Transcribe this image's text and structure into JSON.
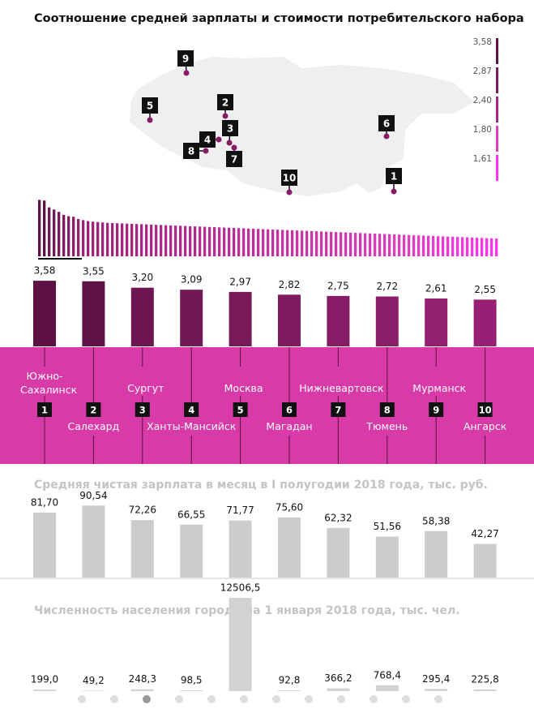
{
  "title": "Соотношение средней зарплаты и стоимости потребительского набора",
  "legend": [
    {
      "value": 3.58,
      "label": "3,58",
      "color": "#5e1244"
    },
    {
      "value": 2.87,
      "label": "2,87",
      "color": "#7c1a5e"
    },
    {
      "value": 2.4,
      "label": "2,40",
      "color": "#a4237e"
    },
    {
      "value": 1.8,
      "label": "1,80",
      "color": "#e03cc0"
    },
    {
      "value": 1.61,
      "label": "1,61",
      "color": "#ff33f0"
    }
  ],
  "overview": {
    "ylim": [
      0.7,
      3.6
    ],
    "values": [
      3.58,
      3.55,
      3.2,
      3.09,
      2.97,
      2.82,
      2.75,
      2.72,
      2.61,
      2.55,
      2.5,
      2.47,
      2.45,
      2.43,
      2.41,
      2.4,
      2.39,
      2.38,
      2.37,
      2.36,
      2.35,
      2.34,
      2.33,
      2.32,
      2.31,
      2.3,
      2.29,
      2.28,
      2.27,
      2.26,
      2.25,
      2.24,
      2.23,
      2.22,
      2.21,
      2.2,
      2.19,
      2.18,
      2.17,
      2.16,
      2.15,
      2.14,
      2.13,
      2.12,
      2.11,
      2.1,
      2.09,
      2.08,
      2.07,
      2.06,
      2.05,
      2.04,
      2.03,
      2.02,
      2.01,
      2.0,
      1.99,
      1.98,
      1.97,
      1.96,
      1.95,
      1.94,
      1.93,
      1.92,
      1.91,
      1.9,
      1.89,
      1.88,
      1.87,
      1.86,
      1.85,
      1.84,
      1.83,
      1.82,
      1.81,
      1.8,
      1.79,
      1.78,
      1.77,
      1.76,
      1.75,
      1.74,
      1.73,
      1.72,
      1.71,
      1.7,
      1.69,
      1.68,
      1.67,
      1.66,
      1.65,
      1.64,
      1.63,
      1.62,
      1.61
    ]
  },
  "cities": [
    {
      "name": "Южно-Сахалинск",
      "number": 1
    },
    {
      "name": "Салехард",
      "number": 2
    },
    {
      "name": "Сургут",
      "number": 3
    },
    {
      "name": "Ханты-Мансийск",
      "number": 4
    },
    {
      "name": "Москва",
      "number": 5
    },
    {
      "name": "Магадан",
      "number": 6
    },
    {
      "name": "Нижневартовск",
      "number": 7
    },
    {
      "name": "Тюмень",
      "number": 8
    },
    {
      "name": "Мурманск",
      "number": 9
    },
    {
      "name": "Ангарск",
      "number": 10
    }
  ],
  "ratio": {
    "ylim": [
      0,
      4
    ],
    "values": [
      3.58,
      3.55,
      3.2,
      3.09,
      2.97,
      2.82,
      2.75,
      2.72,
      2.61,
      2.55
    ],
    "value_labels": [
      "3,58",
      "3,55",
      "3,20",
      "3,09",
      "2,97",
      "2,82",
      "2,75",
      "2,72",
      "2,61",
      "2,55"
    ]
  },
  "salary": {
    "title": "Средняя чистая зарплата в месяц в I полугодии 2018 года, тыс. руб.",
    "ylim": [
      0,
      100
    ],
    "color": "#cccccc",
    "values": [
      81.7,
      90.54,
      72.26,
      66.55,
      71.77,
      75.6,
      62.32,
      51.56,
      58.38,
      42.27
    ],
    "value_labels": [
      "81,70",
      "90,54",
      "72,26",
      "66,55",
      "71,77",
      "75,60",
      "62,32",
      "51,56",
      "58,38",
      "42,27"
    ]
  },
  "population": {
    "title": "Численность населения города на 1 января 2018 года, тыс. чел.",
    "ylim": [
      0,
      12506.5
    ],
    "color": "#d2d2d2",
    "values": [
      199.0,
      49.2,
      248.3,
      98.5,
      12506.5,
      92.8,
      366.2,
      768.4,
      295.4,
      225.8
    ],
    "value_labels": [
      "199,0",
      "49,2",
      "248,3",
      "98,5",
      "12506,5",
      "92,8",
      "366,2",
      "768,4",
      "295,4",
      "225,8"
    ]
  }
}
